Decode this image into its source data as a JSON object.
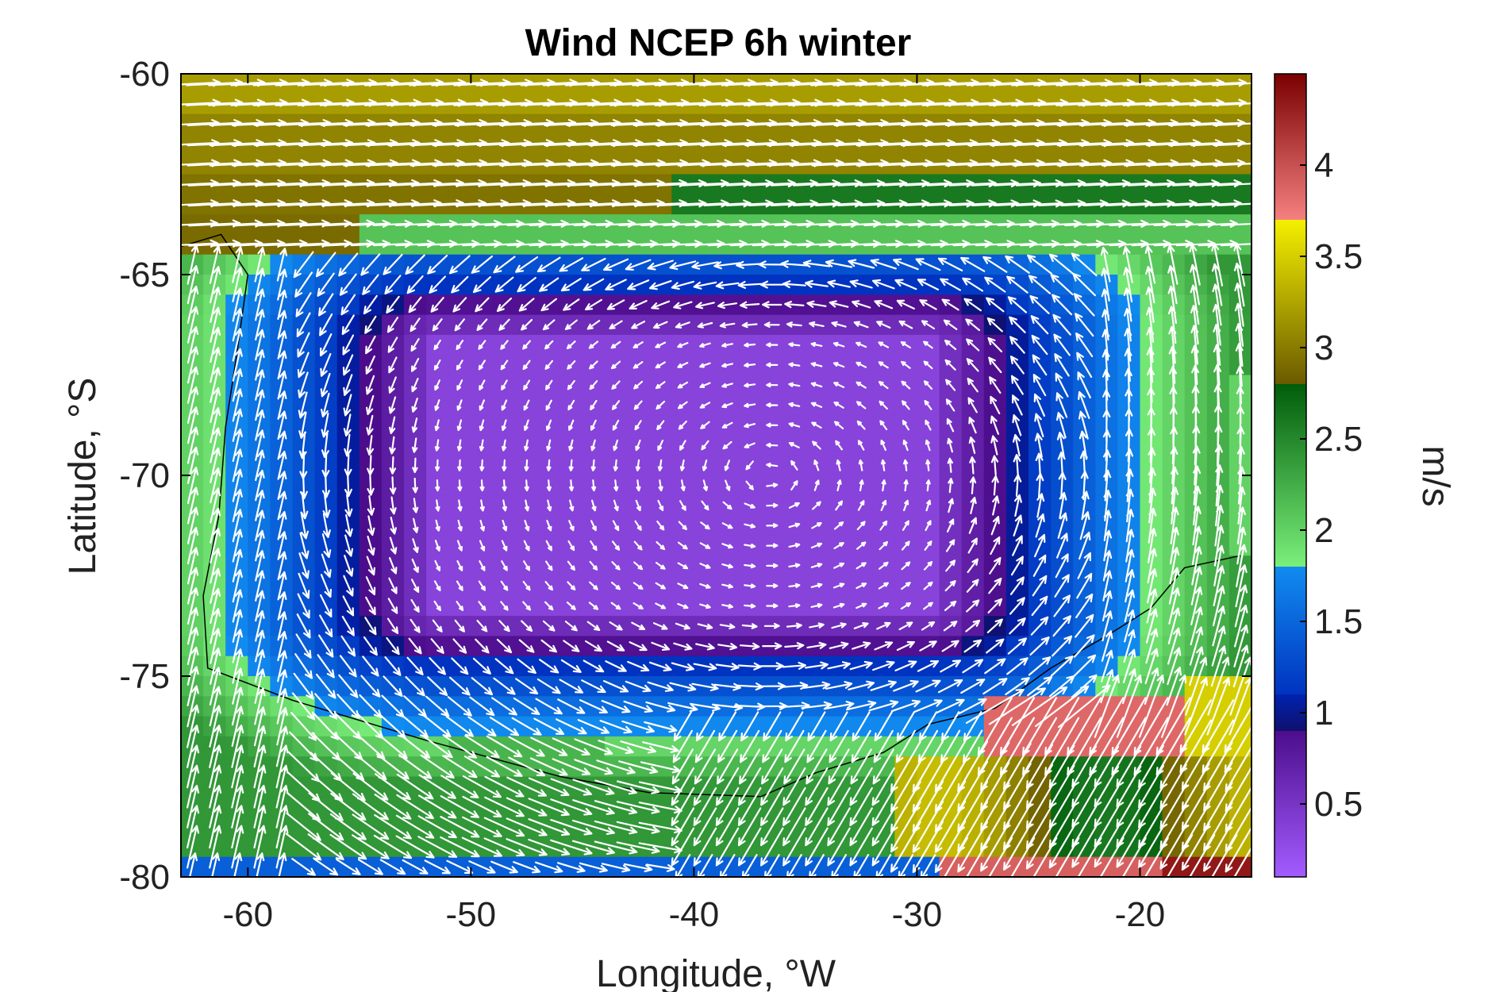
{
  "chart_data": {
    "type": "heatmap",
    "title": "Wind NCEP 6h winter",
    "xlabel": "Longitude, °W",
    "ylabel": "Latitude, °S",
    "xlim": [
      -63,
      -15
    ],
    "ylim": [
      -80,
      -60
    ],
    "x_ticks": [
      -60,
      -50,
      -40,
      -30,
      -20
    ],
    "y_ticks": [
      -60,
      -65,
      -70,
      -75,
      -80
    ],
    "x_tick_labels": [
      "-60",
      "-50",
      "-40",
      "-30",
      "-20"
    ],
    "y_tick_labels": [
      "-60",
      "-65",
      "-70",
      "-75",
      "-80"
    ],
    "colorbar": {
      "label": "m/s",
      "range": [
        0.1,
        4.5
      ],
      "ticks": [
        0.5,
        1,
        1.5,
        2,
        2.5,
        3,
        3.5,
        4
      ],
      "tick_labels": [
        "0.5",
        "1",
        "1.5",
        "2",
        "2.5",
        "3",
        "3.5",
        "4"
      ],
      "colors": [
        {
          "from": 0.1,
          "to": 0.9,
          "start": "#a35cff",
          "end": "#4c0d8c"
        },
        {
          "from": 0.9,
          "to": 1.1,
          "start": "#10106e",
          "end": "#0022b0"
        },
        {
          "from": 1.1,
          "to": 1.8,
          "start": "#0033c0",
          "end": "#118cf0"
        },
        {
          "from": 1.8,
          "to": 2.8,
          "start": "#7aef7a",
          "end": "#005c0a"
        },
        {
          "from": 2.8,
          "to": 3.7,
          "start": "#6a5a00",
          "end": "#f5f000"
        },
        {
          "from": 3.7,
          "to": 4.5,
          "start": "#f58080",
          "end": "#7a0000"
        }
      ]
    },
    "vectors": "white wind arrows showing direction and magnitude on a regular grid",
    "grid": false
  },
  "colors": {
    "arrow": "#ffffff",
    "coastline": "#000000",
    "axis": "#000000"
  }
}
